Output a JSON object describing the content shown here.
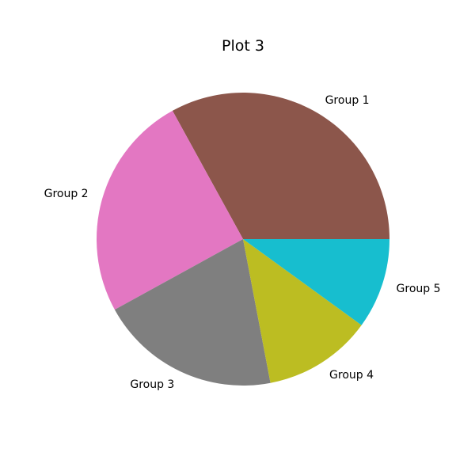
{
  "chart_data": {
    "type": "pie",
    "title": "Plot 3",
    "labels": [
      "Group 1",
      "Group 2",
      "Group 3",
      "Group 4",
      "Group 5"
    ],
    "values": [
      33,
      25,
      20,
      12,
      10
    ],
    "colors": [
      "#8c564b",
      "#e377c2",
      "#7f7f7f",
      "#bcbd22",
      "#17becf"
    ],
    "start_angle_deg": 0,
    "direction": "counterclockwise"
  }
}
